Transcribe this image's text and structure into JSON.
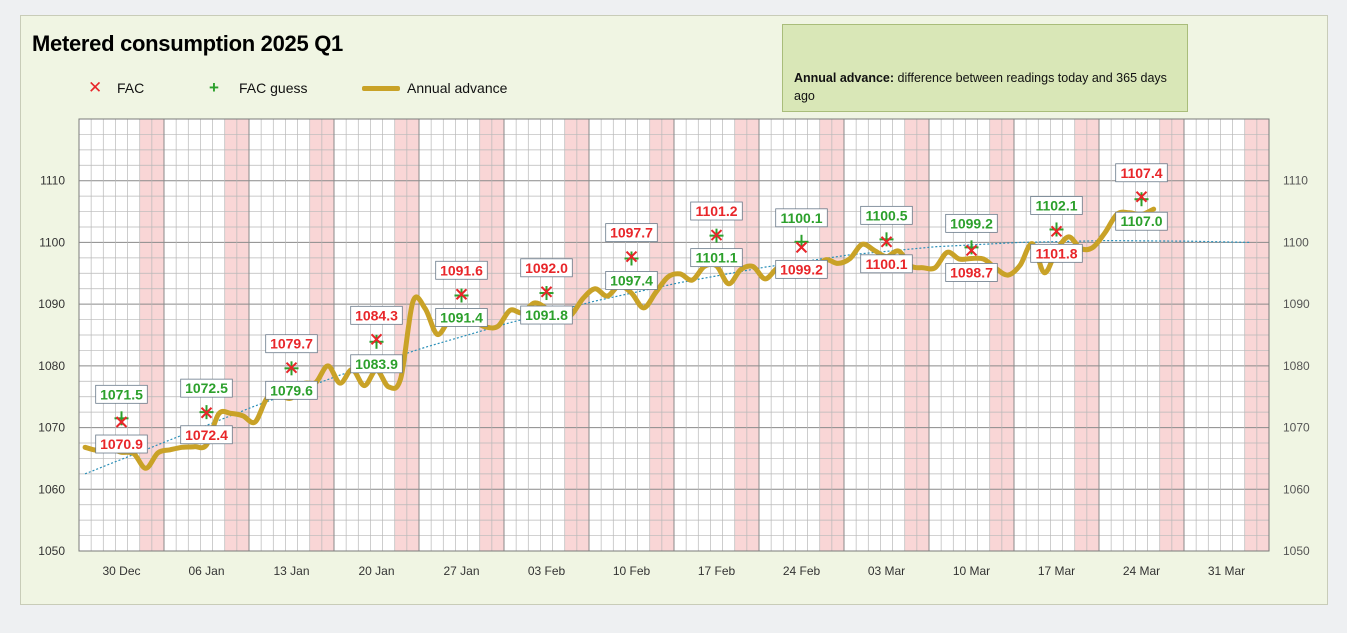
{
  "title": "Metered consumption 2025 Q1",
  "note": {
    "label": "Annual advance:",
    "text": " difference between readings today and 365 days ago"
  },
  "legend": {
    "fac": "FAC",
    "fac_guess": "FAC guess",
    "annual_advance": "Annual advance",
    "fac_color": "#e8262a",
    "fac_guess_color": "#2ca02c",
    "advance_color": "#c9a227"
  },
  "chart_data": {
    "type": "line",
    "x_axis": "date",
    "x_range": [
      "2024-12-30",
      "2025-04-07"
    ],
    "ylim": [
      1050,
      1120
    ],
    "yticks": [
      1050,
      1060,
      1070,
      1080,
      1090,
      1100,
      1110
    ],
    "xtick_labels": [
      "30 Dec",
      "06 Jan",
      "13 Jan",
      "20 Jan",
      "27 Jan",
      "03 Feb",
      "10 Feb",
      "17 Feb",
      "24 Feb",
      "03 Mar",
      "10 Mar",
      "17 Mar",
      "24 Mar",
      "31 Mar"
    ],
    "grid": true,
    "weekend_shading": true,
    "legend_position": "top-left",
    "fac": [
      {
        "date": "2025-01-02",
        "value": 1070.9
      },
      {
        "date": "2025-01-09",
        "value": 1072.4
      },
      {
        "date": "2025-01-16",
        "value": 1079.7
      },
      {
        "date": "2025-01-23",
        "value": 1084.3
      },
      {
        "date": "2025-01-30",
        "value": 1091.6
      },
      {
        "date": "2025-02-06",
        "value": 1092.0
      },
      {
        "date": "2025-02-13",
        "value": 1097.7
      },
      {
        "date": "2025-02-20",
        "value": 1101.2
      },
      {
        "date": "2025-02-27",
        "value": 1099.2
      },
      {
        "date": "2025-03-06",
        "value": 1100.1
      },
      {
        "date": "2025-03-13",
        "value": 1098.7
      },
      {
        "date": "2025-03-20",
        "value": 1101.8
      },
      {
        "date": "2025-03-27",
        "value": 1107.4
      }
    ],
    "fac_guess": [
      {
        "date": "2025-01-02",
        "value": 1071.5
      },
      {
        "date": "2025-01-09",
        "value": 1072.5
      },
      {
        "date": "2025-01-16",
        "value": 1079.6
      },
      {
        "date": "2025-01-23",
        "value": 1083.9
      },
      {
        "date": "2025-01-30",
        "value": 1091.4
      },
      {
        "date": "2025-02-06",
        "value": 1091.8
      },
      {
        "date": "2025-02-13",
        "value": 1097.4
      },
      {
        "date": "2025-02-20",
        "value": 1101.1
      },
      {
        "date": "2025-02-27",
        "value": 1100.1
      },
      {
        "date": "2025-03-06",
        "value": 1100.5
      },
      {
        "date": "2025-03-13",
        "value": 1099.2
      },
      {
        "date": "2025-03-20",
        "value": 1102.1
      },
      {
        "date": "2025-03-27",
        "value": 1107.0
      }
    ],
    "annual_advance": [
      {
        "date": "2024-12-30",
        "value": 1066.8
      },
      {
        "date": "2024-12-31",
        "value": 1066.3
      },
      {
        "date": "2025-01-01",
        "value": 1066.6
      },
      {
        "date": "2025-01-02",
        "value": 1066.0
      },
      {
        "date": "2025-01-03",
        "value": 1065.8
      },
      {
        "date": "2025-01-04",
        "value": 1063.4
      },
      {
        "date": "2025-01-05",
        "value": 1065.9
      },
      {
        "date": "2025-01-06",
        "value": 1066.4
      },
      {
        "date": "2025-01-07",
        "value": 1066.8
      },
      {
        "date": "2025-01-08",
        "value": 1066.9
      },
      {
        "date": "2025-01-09",
        "value": 1067.2
      },
      {
        "date": "2025-01-10",
        "value": 1072.2
      },
      {
        "date": "2025-01-11",
        "value": 1072.3
      },
      {
        "date": "2025-01-12",
        "value": 1071.9
      },
      {
        "date": "2025-01-13",
        "value": 1070.9
      },
      {
        "date": "2025-01-14",
        "value": 1074.8
      },
      {
        "date": "2025-01-15",
        "value": 1075.2
      },
      {
        "date": "2025-01-16",
        "value": 1074.8
      },
      {
        "date": "2025-01-17",
        "value": 1077.1
      },
      {
        "date": "2025-01-18",
        "value": 1077.3
      },
      {
        "date": "2025-01-19",
        "value": 1080.0
      },
      {
        "date": "2025-01-20",
        "value": 1077.2
      },
      {
        "date": "2025-01-21",
        "value": 1079.4
      },
      {
        "date": "2025-01-22",
        "value": 1076.8
      },
      {
        "date": "2025-01-23",
        "value": 1079.3
      },
      {
        "date": "2025-01-24",
        "value": 1076.6
      },
      {
        "date": "2025-01-25",
        "value": 1078.0
      },
      {
        "date": "2025-01-26",
        "value": 1090.4
      },
      {
        "date": "2025-01-27",
        "value": 1089.3
      },
      {
        "date": "2025-01-28",
        "value": 1085.1
      },
      {
        "date": "2025-01-29",
        "value": 1087.3
      },
      {
        "date": "2025-01-30",
        "value": 1086.9
      },
      {
        "date": "2025-01-31",
        "value": 1087.1
      },
      {
        "date": "2025-02-01",
        "value": 1086.3
      },
      {
        "date": "2025-02-02",
        "value": 1086.4
      },
      {
        "date": "2025-02-03",
        "value": 1089.0
      },
      {
        "date": "2025-02-04",
        "value": 1088.6
      },
      {
        "date": "2025-02-05",
        "value": 1090.2
      },
      {
        "date": "2025-02-06",
        "value": 1089.3
      },
      {
        "date": "2025-02-07",
        "value": 1088.0
      },
      {
        "date": "2025-02-08",
        "value": 1088.2
      },
      {
        "date": "2025-02-09",
        "value": 1090.9
      },
      {
        "date": "2025-02-10",
        "value": 1092.5
      },
      {
        "date": "2025-02-11",
        "value": 1091.3
      },
      {
        "date": "2025-02-12",
        "value": 1093.0
      },
      {
        "date": "2025-02-13",
        "value": 1091.8
      },
      {
        "date": "2025-02-14",
        "value": 1089.4
      },
      {
        "date": "2025-02-15",
        "value": 1091.9
      },
      {
        "date": "2025-02-16",
        "value": 1094.4
      },
      {
        "date": "2025-02-17",
        "value": 1094.9
      },
      {
        "date": "2025-02-18",
        "value": 1093.9
      },
      {
        "date": "2025-02-19",
        "value": 1096.1
      },
      {
        "date": "2025-02-20",
        "value": 1096.2
      },
      {
        "date": "2025-02-21",
        "value": 1093.3
      },
      {
        "date": "2025-02-22",
        "value": 1095.6
      },
      {
        "date": "2025-02-23",
        "value": 1096.1
      },
      {
        "date": "2025-02-24",
        "value": 1094.1
      },
      {
        "date": "2025-02-25",
        "value": 1095.8
      },
      {
        "date": "2025-02-26",
        "value": 1096.2
      },
      {
        "date": "2025-02-27",
        "value": 1096.0
      },
      {
        "date": "2025-02-28",
        "value": 1095.7
      },
      {
        "date": "2025-03-01",
        "value": 1097.2
      },
      {
        "date": "2025-03-02",
        "value": 1096.6
      },
      {
        "date": "2025-03-03",
        "value": 1097.4
      },
      {
        "date": "2025-03-04",
        "value": 1099.7
      },
      {
        "date": "2025-03-05",
        "value": 1098.7
      },
      {
        "date": "2025-03-06",
        "value": 1097.7
      },
      {
        "date": "2025-03-07",
        "value": 1098.6
      },
      {
        "date": "2025-03-08",
        "value": 1096.2
      },
      {
        "date": "2025-03-09",
        "value": 1095.9
      },
      {
        "date": "2025-03-10",
        "value": 1095.9
      },
      {
        "date": "2025-03-11",
        "value": 1098.4
      },
      {
        "date": "2025-03-12",
        "value": 1097.3
      },
      {
        "date": "2025-03-13",
        "value": 1097.4
      },
      {
        "date": "2025-03-14",
        "value": 1097.3
      },
      {
        "date": "2025-03-15",
        "value": 1095.8
      },
      {
        "date": "2025-03-16",
        "value": 1094.7
      },
      {
        "date": "2025-03-17",
        "value": 1096.3
      },
      {
        "date": "2025-03-18",
        "value": 1099.8
      },
      {
        "date": "2025-03-19",
        "value": 1095.1
      },
      {
        "date": "2025-03-20",
        "value": 1098.7
      },
      {
        "date": "2025-03-21",
        "value": 1100.9
      },
      {
        "date": "2025-03-22",
        "value": 1099.0
      },
      {
        "date": "2025-03-23",
        "value": 1099.2
      },
      {
        "date": "2025-03-24",
        "value": 1101.6
      },
      {
        "date": "2025-03-25",
        "value": 1104.6
      },
      {
        "date": "2025-03-26",
        "value": 1104.8
      },
      {
        "date": "2025-03-27",
        "value": 1104.5
      },
      {
        "date": "2025-03-28",
        "value": 1105.4
      }
    ],
    "trendline": [
      {
        "date": "2024-12-30",
        "value": 1062.5
      },
      {
        "date": "2025-01-06",
        "value": 1068.0
      },
      {
        "date": "2025-01-13",
        "value": 1073.5
      },
      {
        "date": "2025-01-20",
        "value": 1078.5
      },
      {
        "date": "2025-01-27",
        "value": 1083.0
      },
      {
        "date": "2025-02-03",
        "value": 1087.0
      },
      {
        "date": "2025-02-10",
        "value": 1090.5
      },
      {
        "date": "2025-02-17",
        "value": 1093.5
      },
      {
        "date": "2025-02-24",
        "value": 1096.0
      },
      {
        "date": "2025-03-03",
        "value": 1098.0
      },
      {
        "date": "2025-03-10",
        "value": 1099.3
      },
      {
        "date": "2025-03-17",
        "value": 1100.0
      },
      {
        "date": "2025-03-24",
        "value": 1100.3
      },
      {
        "date": "2025-03-31",
        "value": 1100.2
      },
      {
        "date": "2025-04-05",
        "value": 1100.0
      }
    ]
  }
}
